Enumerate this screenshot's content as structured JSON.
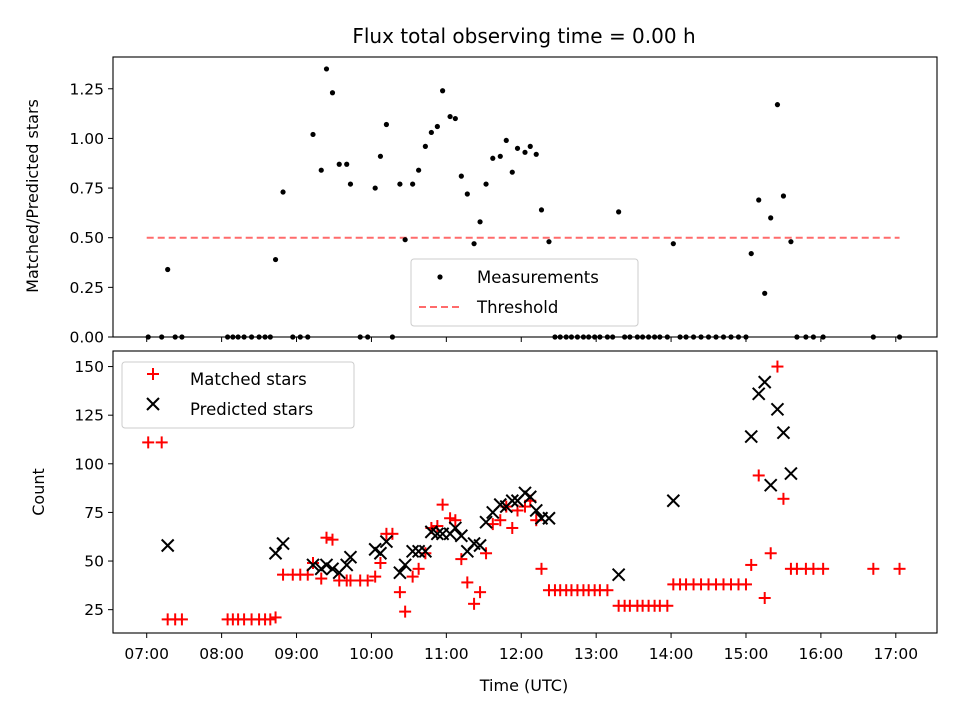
{
  "chart_data": [
    {
      "type": "scatter",
      "title": "Flux total observing time = 0.00 h",
      "xlabel": "",
      "ylabel": "Matched/Predicted stars",
      "xlim": [
        6.55,
        17.55
      ],
      "ylim": [
        0,
        1.41
      ],
      "yticks": [
        0,
        0.25,
        0.5,
        0.75,
        1.0,
        1.25
      ],
      "yticklabels": [
        "0.00",
        "0.25",
        "0.50",
        "0.75",
        "1.00",
        "1.25"
      ],
      "legend": {
        "position": "lower-center",
        "entries": [
          "Measurements",
          "Threshold"
        ]
      },
      "threshold": {
        "name": "Threshold",
        "y": 0.5,
        "x": [
          7.0,
          17.05
        ],
        "color": "#ff6b6b",
        "style": "dashed"
      },
      "series": [
        {
          "name": "Measurements",
          "marker": "dot",
          "color": "#000000",
          "points": [
            [
              7.02,
              0
            ],
            [
              7.2,
              0
            ],
            [
              7.28,
              0.34
            ],
            [
              7.38,
              0
            ],
            [
              7.47,
              0
            ],
            [
              8.08,
              0
            ],
            [
              8.15,
              0
            ],
            [
              8.22,
              0
            ],
            [
              8.3,
              0
            ],
            [
              8.4,
              0
            ],
            [
              8.5,
              0
            ],
            [
              8.58,
              0
            ],
            [
              8.65,
              0
            ],
            [
              8.72,
              0.39
            ],
            [
              8.82,
              0.73
            ],
            [
              8.95,
              0
            ],
            [
              9.05,
              0
            ],
            [
              9.15,
              0
            ],
            [
              9.22,
              1.02
            ],
            [
              9.33,
              0.84
            ],
            [
              9.4,
              1.35
            ],
            [
              9.48,
              1.23
            ],
            [
              9.57,
              0.87
            ],
            [
              9.67,
              0.87
            ],
            [
              9.72,
              0.77
            ],
            [
              9.85,
              0
            ],
            [
              9.95,
              0
            ],
            [
              10.05,
              0.75
            ],
            [
              10.12,
              0.91
            ],
            [
              10.2,
              1.07
            ],
            [
              10.28,
              0
            ],
            [
              10.38,
              0.77
            ],
            [
              10.45,
              0.49
            ],
            [
              10.55,
              0.77
            ],
            [
              10.63,
              0.84
            ],
            [
              10.72,
              0.96
            ],
            [
              10.8,
              1.03
            ],
            [
              10.88,
              1.06
            ],
            [
              10.95,
              1.24
            ],
            [
              11.05,
              1.11
            ],
            [
              11.12,
              1.1
            ],
            [
              11.2,
              0.81
            ],
            [
              11.28,
              0.72
            ],
            [
              11.37,
              0.47
            ],
            [
              11.45,
              0.58
            ],
            [
              11.53,
              0.77
            ],
            [
              11.62,
              0.9
            ],
            [
              11.72,
              0.91
            ],
            [
              11.8,
              0.99
            ],
            [
              11.88,
              0.83
            ],
            [
              11.95,
              0.95
            ],
            [
              12.05,
              0.93
            ],
            [
              12.12,
              0.96
            ],
            [
              12.2,
              0.92
            ],
            [
              12.27,
              0.64
            ],
            [
              12.37,
              0.48
            ],
            [
              12.45,
              0
            ],
            [
              12.52,
              0
            ],
            [
              12.6,
              0
            ],
            [
              12.67,
              0
            ],
            [
              12.75,
              0
            ],
            [
              12.83,
              0
            ],
            [
              12.9,
              0
            ],
            [
              12.98,
              0
            ],
            [
              13.05,
              0
            ],
            [
              13.15,
              0
            ],
            [
              13.22,
              0
            ],
            [
              13.3,
              0.63
            ],
            [
              13.38,
              0
            ],
            [
              13.45,
              0
            ],
            [
              13.55,
              0
            ],
            [
              13.62,
              0
            ],
            [
              13.7,
              0
            ],
            [
              13.78,
              0
            ],
            [
              13.85,
              0
            ],
            [
              13.95,
              0
            ],
            [
              14.03,
              0.47
            ],
            [
              14.12,
              0
            ],
            [
              14.2,
              0
            ],
            [
              14.3,
              0
            ],
            [
              14.4,
              0
            ],
            [
              14.5,
              0
            ],
            [
              14.6,
              0
            ],
            [
              14.7,
              0
            ],
            [
              14.8,
              0
            ],
            [
              14.9,
              0
            ],
            [
              15.0,
              0
            ],
            [
              15.07,
              0.42
            ],
            [
              15.17,
              0.69
            ],
            [
              15.25,
              0.22
            ],
            [
              15.33,
              0.6
            ],
            [
              15.42,
              1.17
            ],
            [
              15.5,
              0.71
            ],
            [
              15.6,
              0.48
            ],
            [
              15.68,
              0
            ],
            [
              15.8,
              0
            ],
            [
              15.9,
              0
            ],
            [
              16.03,
              0
            ],
            [
              16.7,
              0
            ],
            [
              17.05,
              0
            ]
          ]
        }
      ]
    },
    {
      "type": "scatter",
      "title": "",
      "xlabel": "Time (UTC)",
      "ylabel": "Count",
      "xlim": [
        6.55,
        17.55
      ],
      "ylim": [
        13,
        158
      ],
      "xticks": [
        7,
        8,
        9,
        10,
        11,
        12,
        13,
        14,
        15,
        16,
        17
      ],
      "xticklabels": [
        "07:00",
        "08:00",
        "09:00",
        "10:00",
        "11:00",
        "12:00",
        "13:00",
        "14:00",
        "15:00",
        "16:00",
        "17:00"
      ],
      "yticks": [
        25,
        50,
        75,
        100,
        125,
        150
      ],
      "yticklabels": [
        "25",
        "50",
        "75",
        "100",
        "125",
        "150"
      ],
      "legend": {
        "position": "upper-left",
        "entries": [
          "Matched stars",
          "Predicted stars"
        ]
      },
      "series": [
        {
          "name": "Matched stars",
          "marker": "plus",
          "color": "#ff0000",
          "points": [
            [
              7.02,
              111
            ],
            [
              7.2,
              111
            ],
            [
              7.28,
              20
            ],
            [
              7.38,
              20
            ],
            [
              7.47,
              20
            ],
            [
              8.08,
              20
            ],
            [
              8.15,
              20
            ],
            [
              8.22,
              20
            ],
            [
              8.3,
              20
            ],
            [
              8.4,
              20
            ],
            [
              8.5,
              20
            ],
            [
              8.58,
              20
            ],
            [
              8.65,
              20
            ],
            [
              8.72,
              21
            ],
            [
              8.82,
              43
            ],
            [
              8.95,
              43
            ],
            [
              9.05,
              43
            ],
            [
              9.15,
              43
            ],
            [
              9.22,
              49
            ],
            [
              9.33,
              41
            ],
            [
              9.4,
              62
            ],
            [
              9.48,
              61
            ],
            [
              9.57,
              40
            ],
            [
              9.67,
              40
            ],
            [
              9.72,
              40
            ],
            [
              9.85,
              40
            ],
            [
              9.95,
              40
            ],
            [
              10.05,
              42
            ],
            [
              10.12,
              49
            ],
            [
              10.2,
              64
            ],
            [
              10.28,
              64
            ],
            [
              10.38,
              34
            ],
            [
              10.45,
              24
            ],
            [
              10.55,
              42
            ],
            [
              10.63,
              46
            ],
            [
              10.72,
              54
            ],
            [
              10.8,
              67
            ],
            [
              10.88,
              68
            ],
            [
              10.95,
              79
            ],
            [
              11.05,
              72
            ],
            [
              11.12,
              71
            ],
            [
              11.2,
              51
            ],
            [
              11.28,
              39
            ],
            [
              11.37,
              28
            ],
            [
              11.45,
              34
            ],
            [
              11.53,
              54
            ],
            [
              11.62,
              69
            ],
            [
              11.72,
              71
            ],
            [
              11.8,
              78
            ],
            [
              11.88,
              67
            ],
            [
              11.95,
              76
            ],
            [
              12.05,
              78
            ],
            [
              12.12,
              81
            ],
            [
              12.2,
              71
            ],
            [
              12.27,
              46
            ],
            [
              12.37,
              35
            ],
            [
              12.45,
              35
            ],
            [
              12.52,
              35
            ],
            [
              12.6,
              35
            ],
            [
              12.67,
              35
            ],
            [
              12.75,
              35
            ],
            [
              12.83,
              35
            ],
            [
              12.9,
              35
            ],
            [
              12.98,
              35
            ],
            [
              13.05,
              35
            ],
            [
              13.15,
              35
            ],
            [
              13.3,
              27
            ],
            [
              13.38,
              27
            ],
            [
              13.45,
              27
            ],
            [
              13.55,
              27
            ],
            [
              13.62,
              27
            ],
            [
              13.7,
              27
            ],
            [
              13.78,
              27
            ],
            [
              13.85,
              27
            ],
            [
              13.95,
              27
            ],
            [
              14.03,
              38
            ],
            [
              14.12,
              38
            ],
            [
              14.2,
              38
            ],
            [
              14.3,
              38
            ],
            [
              14.4,
              38
            ],
            [
              14.5,
              38
            ],
            [
              14.6,
              38
            ],
            [
              14.7,
              38
            ],
            [
              14.8,
              38
            ],
            [
              14.9,
              38
            ],
            [
              15.0,
              38
            ],
            [
              15.07,
              48
            ],
            [
              15.17,
              94
            ],
            [
              15.25,
              31
            ],
            [
              15.33,
              54
            ],
            [
              15.42,
              150
            ],
            [
              15.5,
              82
            ],
            [
              15.6,
              46
            ],
            [
              15.68,
              46
            ],
            [
              15.8,
              46
            ],
            [
              15.9,
              46
            ],
            [
              16.03,
              46
            ],
            [
              16.7,
              46
            ],
            [
              17.05,
              46
            ]
          ]
        },
        {
          "name": "Predicted stars",
          "marker": "x",
          "color": "#000000",
          "points": [
            [
              7.28,
              58
            ],
            [
              8.72,
              54
            ],
            [
              8.82,
              59
            ],
            [
              9.22,
              48
            ],
            [
              9.33,
              46
            ],
            [
              9.4,
              48
            ],
            [
              9.48,
              46
            ],
            [
              9.57,
              44
            ],
            [
              9.67,
              48
            ],
            [
              9.72,
              52
            ],
            [
              10.05,
              56
            ],
            [
              10.12,
              54
            ],
            [
              10.2,
              60
            ],
            [
              10.38,
              44
            ],
            [
              10.45,
              48
            ],
            [
              10.55,
              55
            ],
            [
              10.63,
              55
            ],
            [
              10.72,
              55
            ],
            [
              10.8,
              65
            ],
            [
              10.88,
              64
            ],
            [
              10.95,
              64
            ],
            [
              11.05,
              64
            ],
            [
              11.12,
              67
            ],
            [
              11.2,
              63
            ],
            [
              11.28,
              55
            ],
            [
              11.37,
              59
            ],
            [
              11.45,
              58
            ],
            [
              11.53,
              70
            ],
            [
              11.62,
              75
            ],
            [
              11.72,
              79
            ],
            [
              11.8,
              78
            ],
            [
              11.88,
              81
            ],
            [
              11.95,
              81
            ],
            [
              12.05,
              85
            ],
            [
              12.12,
              83
            ],
            [
              12.2,
              76
            ],
            [
              12.27,
              72
            ],
            [
              12.37,
              72
            ],
            [
              13.3,
              43
            ],
            [
              14.03,
              81
            ],
            [
              15.07,
              114
            ],
            [
              15.17,
              136
            ],
            [
              15.25,
              142
            ],
            [
              15.33,
              89
            ],
            [
              15.42,
              128
            ],
            [
              15.5,
              116
            ],
            [
              15.6,
              95
            ]
          ]
        }
      ]
    }
  ]
}
